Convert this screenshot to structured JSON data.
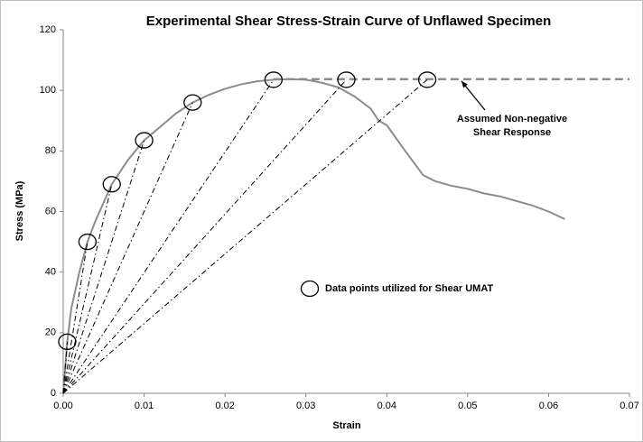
{
  "chart_data": {
    "type": "line",
    "title": "Experimental Shear Stress-Strain Curve of Unflawed Specimen",
    "xlabel": "Strain",
    "ylabel": "Stress (MPa)",
    "xlim": [
      0,
      0.07
    ],
    "ylim": [
      0,
      120
    ],
    "xticks": [
      {
        "value": 0,
        "label": "0.00"
      },
      {
        "value": 0.01,
        "label": "0.01"
      },
      {
        "value": 0.02,
        "label": "0.02"
      },
      {
        "value": 0.03,
        "label": "0.03"
      },
      {
        "value": 0.04,
        "label": "0.04"
      },
      {
        "value": 0.05,
        "label": "0.05"
      },
      {
        "value": 0.06,
        "label": "0.06"
      },
      {
        "value": 0.07,
        "label": "0.07"
      }
    ],
    "yticks": [
      0,
      20,
      40,
      60,
      80,
      100,
      120
    ],
    "series": [
      {
        "color": "#8c8c8c",
        "style": "solid",
        "x": [
          0,
          0.0005,
          0.001,
          0.002,
          0.003,
          0.004,
          0.005,
          0.006,
          0.008,
          0.01,
          0.012,
          0.014,
          0.016,
          0.018,
          0.02,
          0.022,
          0.024,
          0.026,
          0.028,
          0.03,
          0.032,
          0.034,
          0.036,
          0.038,
          0.039,
          0.04,
          0.042,
          0.0445,
          0.046,
          0.048,
          0.05,
          0.052,
          0.054,
          0.056,
          0.058,
          0.06,
          0.062
        ],
        "values": [
          0,
          17,
          28,
          40,
          50,
          57,
          63,
          69,
          77,
          83.5,
          88,
          92.5,
          96,
          98.5,
          100.5,
          102,
          103,
          103.5,
          103.7,
          103.5,
          102.5,
          101,
          98,
          94,
          90,
          88.5,
          81,
          72,
          70,
          68.5,
          67.5,
          66,
          65,
          63.5,
          62,
          60,
          57.5
        ]
      },
      {
        "color": "#8c8c8c",
        "style": "dashed",
        "x": [
          0.026,
          0.07
        ],
        "values": [
          103.7,
          103.7
        ]
      },
      {
        "name": "Data points utilized for Shear UMAT",
        "color": "#000000",
        "style": "points",
        "x": [
          0.0005,
          0.003,
          0.006,
          0.01,
          0.016,
          0.026,
          0.035,
          0.045
        ],
        "values": [
          17,
          50,
          69,
          83.5,
          96,
          103.5,
          103.5,
          103.5
        ]
      }
    ],
    "annotations": [
      {
        "text": [
          "Assumed Non-negative",
          "Shear Response"
        ],
        "x": 0.049,
        "y": 104
      }
    ]
  }
}
